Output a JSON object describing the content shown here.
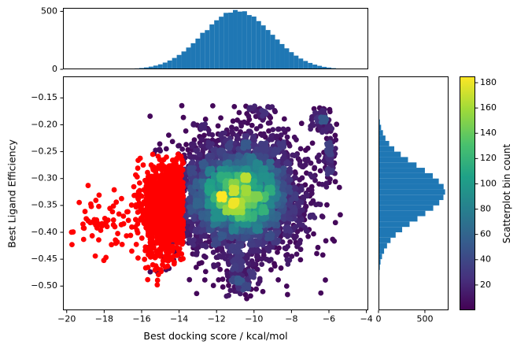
{
  "chart_data": {
    "type": "scatter",
    "title": "",
    "xlabel": "Best docking score / kcal/mol",
    "ylabel": "Best Ligand Efficiency",
    "xlim": [
      -20.2,
      -3.9
    ],
    "ylim": [
      -0.545,
      -0.11
    ],
    "xticks": [
      -20,
      -18,
      -16,
      -14,
      -12,
      -10,
      -8,
      -6,
      -4
    ],
    "yticks": [
      -0.15,
      -0.2,
      -0.25,
      -0.3,
      -0.35,
      -0.4,
      -0.45,
      -0.5
    ],
    "grid": false,
    "colors": {
      "hist": "#1f77b4",
      "red": "#ff0000",
      "spine": "#000000",
      "background": "#ffffff"
    },
    "viridis": [
      [
        0,
        "#440154"
      ],
      [
        0.14,
        "#46327e"
      ],
      [
        0.29,
        "#365c8d"
      ],
      [
        0.43,
        "#277f8e"
      ],
      [
        0.57,
        "#1fa187"
      ],
      [
        0.71,
        "#4ac16d"
      ],
      [
        0.86,
        "#a0da39"
      ],
      [
        1,
        "#fde725"
      ]
    ],
    "colorbar": {
      "label": "Scatterplot bin count",
      "vmin": 0,
      "vmax": 185,
      "ticks": [
        20,
        40,
        60,
        80,
        100,
        120,
        140,
        160,
        180
      ]
    },
    "top_hist": {
      "bin_start": -17.625,
      "bin_width": 0.25,
      "ylim": [
        0,
        530
      ],
      "yticks": [
        0,
        500
      ],
      "counts": [
        1,
        1,
        2,
        3,
        5,
        8,
        11,
        16,
        23,
        32,
        43,
        58,
        76,
        98,
        124,
        154,
        188,
        225,
        265,
        315,
        338,
        387,
        423,
        454,
        487,
        489,
        512,
        498,
        501,
        468,
        455,
        416,
        379,
        339,
        298,
        257,
        218,
        181,
        148,
        118,
        93,
        72,
        55,
        41,
        30,
        21,
        15,
        10,
        7,
        5
      ]
    },
    "right_hist": {
      "bin_start": -0.5,
      "bin_width": 0.01,
      "xlim": [
        0,
        755
      ],
      "xticks": [
        0,
        500
      ],
      "counts": [
        4,
        6,
        9,
        14,
        22,
        38,
        60,
        92,
        130,
        185,
        255,
        335,
        420,
        505,
        590,
        655,
        700,
        718,
        702,
        650,
        585,
        500,
        410,
        318,
        240,
        170,
        115,
        75,
        48,
        28,
        15,
        8,
        4
      ]
    },
    "density_bin": {
      "dx": 0.32,
      "dy": 0.012
    },
    "scatter_clusters": [
      {
        "name": "core",
        "group": "density",
        "n": 4200,
        "mu": [
          -10.75,
          -0.33
        ],
        "sigma": [
          1.45,
          0.047
        ],
        "bounds": [
          -13.85,
          -5.3,
          -0.52,
          -0.165
        ]
      },
      {
        "name": "halo",
        "group": "density",
        "n": 750,
        "mu": [
          -10.9,
          -0.335
        ],
        "sigma": [
          2.35,
          0.075
        ],
        "bounds": [
          -15.8,
          -5.15,
          -0.525,
          -0.16
        ]
      },
      {
        "name": "bottom-tail",
        "group": "density",
        "n": 90,
        "mu": [
          -10.75,
          -0.492
        ],
        "sigma": [
          0.45,
          0.013
        ],
        "bounds": [
          -12.0,
          -9.6,
          -0.525,
          -0.46
        ]
      },
      {
        "name": "bottom-connector",
        "group": "density",
        "n": 40,
        "mu": [
          -11.05,
          -0.455
        ],
        "sigma": [
          0.2,
          0.018
        ],
        "bounds": [
          -11.6,
          -10.5,
          -0.5,
          -0.41
        ]
      },
      {
        "name": "top-arm",
        "group": "density",
        "n": 60,
        "mu": [
          -6.45,
          -0.19
        ],
        "sigma": [
          0.25,
          0.013
        ],
        "bounds": [
          -7.0,
          -5.9,
          -0.225,
          -0.165
        ]
      },
      {
        "name": "right-blob",
        "group": "density",
        "n": 70,
        "mu": [
          -5.95,
          -0.255
        ],
        "sigma": [
          0.16,
          0.03
        ],
        "bounds": [
          -6.35,
          -5.5,
          -0.32,
          -0.19
        ]
      },
      {
        "name": "top-fringe",
        "group": "density",
        "n": 40,
        "mu": [
          -9.8,
          -0.182
        ],
        "sigma": [
          0.55,
          0.011
        ],
        "bounds": [
          -11.0,
          -8.6,
          -0.21,
          -0.162
        ]
      },
      {
        "name": "red-main",
        "group": "red",
        "n": 1050,
        "mu": [
          -14.45,
          -0.352
        ],
        "sigma": [
          0.85,
          0.042
        ],
        "bounds": [
          -17.6,
          -13.78,
          -0.475,
          -0.25
        ]
      },
      {
        "name": "red-outliers",
        "group": "red",
        "n": 60,
        "mu": [
          -18.0,
          -0.395
        ],
        "sigma": [
          1.05,
          0.028
        ],
        "bounds": [
          -19.9,
          -16.1,
          -0.455,
          -0.31
        ]
      },
      {
        "name": "red-low-tail",
        "group": "red",
        "n": 25,
        "mu": [
          -15.3,
          -0.45
        ],
        "sigma": [
          0.5,
          0.02
        ],
        "bounds": [
          -16.5,
          -14.2,
          -0.5,
          -0.41
        ]
      }
    ]
  }
}
